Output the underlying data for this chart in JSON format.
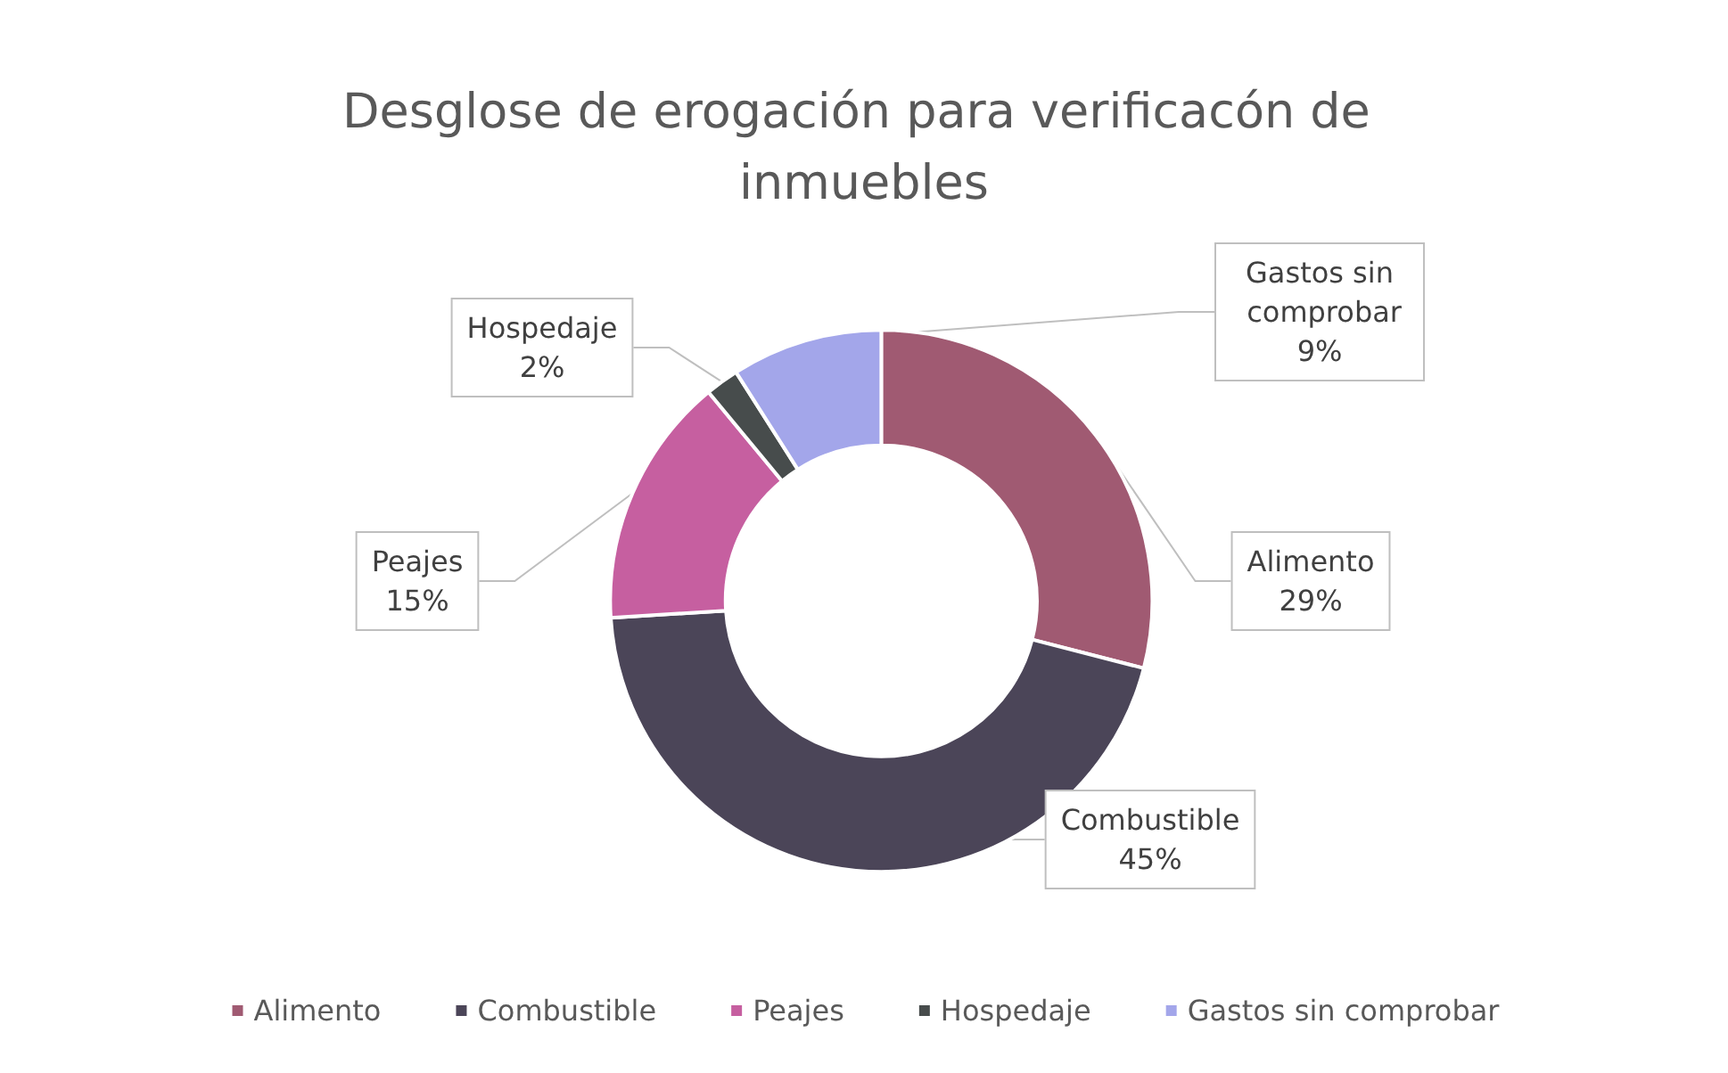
{
  "chart_data": {
    "type": "donut",
    "title": "Desglose de erogación para verificacón de inmuebles",
    "categories": [
      "Alimento",
      "Combustible",
      "Peajes",
      "Hospedaje",
      "Gastos sin comprobar"
    ],
    "values": [
      29,
      45,
      15,
      2,
      9
    ],
    "value_labels": [
      "29%",
      "45%",
      "15%",
      "2%",
      "9%"
    ],
    "colors": [
      "#a05a72",
      "#4b4558",
      "#c65fa0",
      "#474c4c",
      "#a3a6ea"
    ],
    "legend": "bottom"
  }
}
